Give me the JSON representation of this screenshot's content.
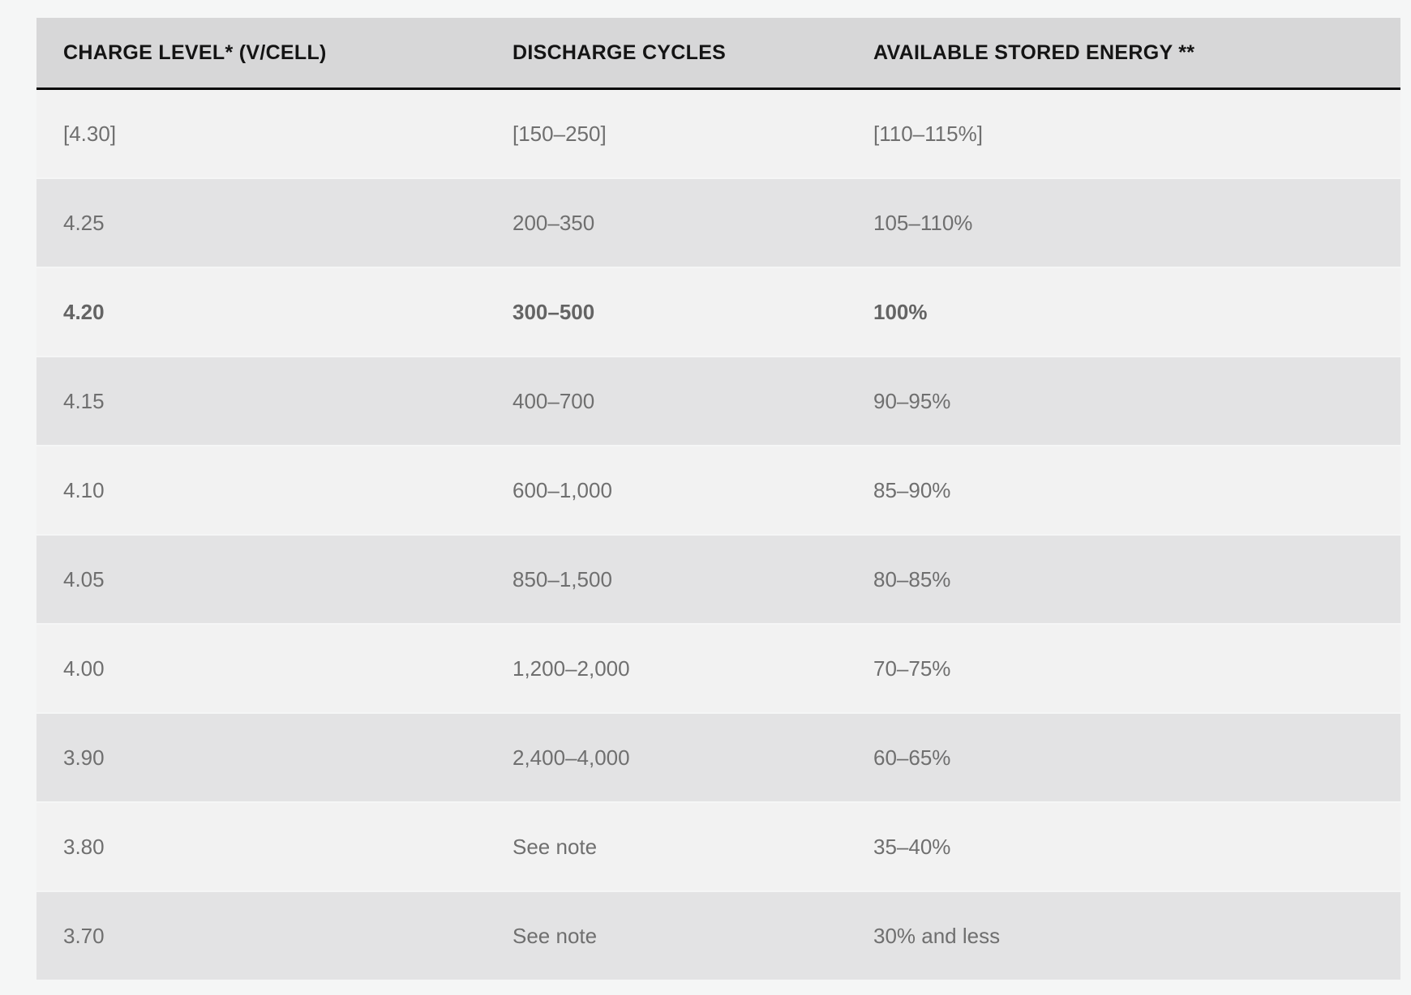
{
  "table": {
    "columns": [
      "CHARGE LEVEL* (V/CELL)",
      "DISCHARGE CYCLES",
      "AVAILABLE STORED ENERGY **"
    ],
    "rows": [
      {
        "charge_level": "[4.30]",
        "discharge_cycles": "[150–250]",
        "stored_energy": "[110–115%]",
        "bold": false
      },
      {
        "charge_level": "4.25",
        "discharge_cycles": "200–350",
        "stored_energy": "105–110%",
        "bold": false
      },
      {
        "charge_level": "4.20",
        "discharge_cycles": "300–500",
        "stored_energy": "100%",
        "bold": true
      },
      {
        "charge_level": "4.15",
        "discharge_cycles": "400–700",
        "stored_energy": "90–95%",
        "bold": false
      },
      {
        "charge_level": "4.10",
        "discharge_cycles": "600–1,000",
        "stored_energy": "85–90%",
        "bold": false
      },
      {
        "charge_level": "4.05",
        "discharge_cycles": "850–1,500",
        "stored_energy": "80–85%",
        "bold": false
      },
      {
        "charge_level": "4.00",
        "discharge_cycles": "1,200–2,000",
        "stored_energy": "70–75%",
        "bold": false
      },
      {
        "charge_level": "3.90",
        "discharge_cycles": "2,400–4,000",
        "stored_energy": "60–65%",
        "bold": false
      },
      {
        "charge_level": "3.80",
        "discharge_cycles": "See note",
        "stored_energy": "35–40%",
        "bold": false
      },
      {
        "charge_level": "3.70",
        "discharge_cycles": "See note",
        "stored_energy": "30% and less",
        "bold": false
      }
    ],
    "colors": {
      "page_background": "#f5f6f6",
      "header_background": "#d7d7d8",
      "header_text": "#141414",
      "header_rule": "#060606",
      "row_light": "#f2f2f2",
      "row_dark": "#e3e3e4",
      "cell_text": "#6f6f6f",
      "bold_cell_text": "#646464"
    }
  },
  "chart_data": {
    "type": "table",
    "columns": [
      "CHARGE LEVEL* (V/CELL)",
      "DISCHARGE CYCLES",
      "AVAILABLE STORED ENERGY **"
    ],
    "rows": [
      [
        "[4.30]",
        "[150–250]",
        "[110–115%]"
      ],
      [
        "4.25",
        "200–350",
        "105–110%"
      ],
      [
        "4.20",
        "300–500",
        "100%"
      ],
      [
        "4.15",
        "400–700",
        "90–95%"
      ],
      [
        "4.10",
        "600–1,000",
        "85–90%"
      ],
      [
        "4.05",
        "850–1,500",
        "80–85%"
      ],
      [
        "4.00",
        "1,200–2,000",
        "70–75%"
      ],
      [
        "3.90",
        "2,400–4,000",
        "60–65%"
      ],
      [
        "3.80",
        "See note",
        "35–40%"
      ],
      [
        "3.70",
        "See note",
        "30% and less"
      ]
    ],
    "emphasized_row_index": 2
  }
}
